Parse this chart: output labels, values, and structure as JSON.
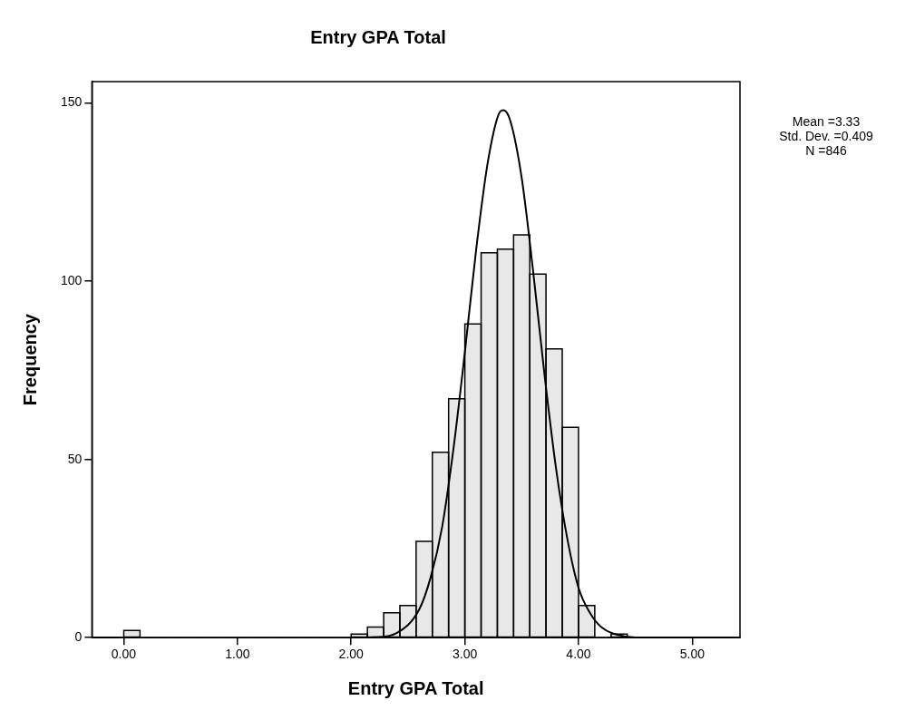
{
  "chart_data": {
    "type": "histogram",
    "title": "Entry GPA Total",
    "xlabel": "Entry GPA Total",
    "ylabel": "Frequency",
    "bins": [
      0,
      0.143,
      0.286,
      0.429,
      0.571,
      0.714,
      0.857,
      1,
      1.143,
      1.286,
      1.429,
      1.571,
      1.714,
      1.857,
      2,
      2.143,
      2.286,
      2.429,
      2.571,
      2.714,
      2.857,
      3,
      3.143,
      3.286,
      3.429,
      3.571,
      3.714,
      3.857,
      4,
      4.143,
      4.286,
      4.429
    ],
    "values": [
      2,
      0,
      0,
      0,
      0,
      0,
      0,
      0,
      0,
      0,
      0,
      0,
      0,
      0,
      1,
      3,
      7,
      9,
      27,
      52,
      67,
      88,
      108,
      109,
      113,
      102,
      81,
      59,
      9,
      0,
      1
    ],
    "color": "#e8e8e8",
    "series": [
      {
        "type": "line",
        "color": "#000000",
        "x": [
          2.0,
          2.2,
          2.4,
          2.6,
          2.7,
          2.8,
          2.9,
          3.0,
          3.1,
          3.2,
          3.3,
          3.34,
          3.4,
          3.5,
          3.6,
          3.7,
          3.8,
          3.9,
          4.0,
          4.1,
          4.2,
          4.4,
          4.6
        ],
        "values": [
          0,
          0.1,
          1.3,
          8,
          17,
          31,
          53,
          80,
          109,
          133,
          147,
          148,
          145,
          129,
          103,
          74,
          48,
          28,
          14,
          7,
          3,
          0.4,
          0
        ]
      }
    ],
    "xlim": [
      -0.28,
      5.42
    ],
    "xticks": [
      {
        "value": 0,
        "label": "0.00"
      },
      {
        "value": 1,
        "label": "1.00"
      },
      {
        "value": 2,
        "label": "2.00"
      },
      {
        "value": 3,
        "label": "3.00"
      },
      {
        "value": 4,
        "label": "4.00"
      },
      {
        "value": 5,
        "label": "5.00"
      }
    ],
    "ylim": [
      0,
      156
    ],
    "yticks": [
      0,
      50,
      100,
      150
    ],
    "annotations": [
      "Mean =3.33",
      "Std. Dev. =0.409",
      "N =846"
    ],
    "grid": false,
    "legend": false,
    "marker": "none",
    "line_style": "solid"
  }
}
